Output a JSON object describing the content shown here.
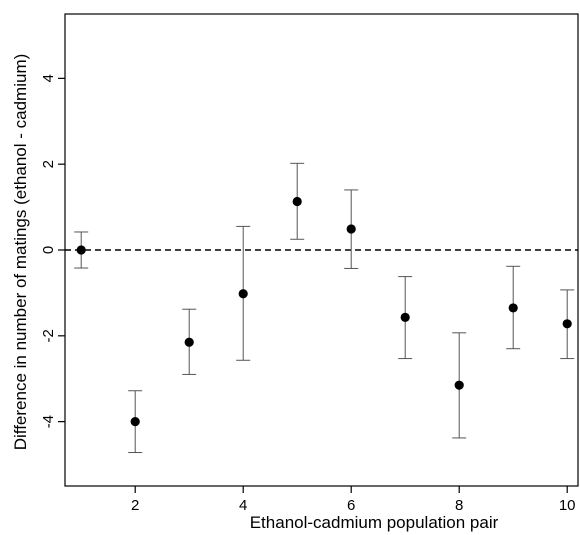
{
  "chart_data": {
    "type": "scatter",
    "title": "",
    "xlabel": "Ethanol-cadmium population pair",
    "ylabel": "Difference in number of matings (ethanol - cadmium)",
    "xlim": [
      0.7,
      10.2
    ],
    "ylim": [
      -5.5,
      5.5
    ],
    "x_ticks": [
      2,
      4,
      6,
      8,
      10
    ],
    "y_ticks": [
      -4,
      -2,
      0,
      2,
      4
    ],
    "x_tick_labels": [
      "2",
      "4",
      "6",
      "8",
      "10"
    ],
    "y_tick_labels": [
      "-4",
      "-2",
      "0",
      "2",
      "4"
    ],
    "reference_line": {
      "y": 0,
      "style": "dashed"
    },
    "grid": false,
    "legend": "none",
    "series": [
      {
        "points": [
          {
            "x": 1,
            "y": 0.0,
            "lower": -0.42,
            "upper": 0.42
          },
          {
            "x": 2,
            "y": -4.0,
            "lower": -4.72,
            "upper": -3.28
          },
          {
            "x": 3,
            "y": -2.15,
            "lower": -2.9,
            "upper": -1.38
          },
          {
            "x": 4,
            "y": -1.02,
            "lower": -2.57,
            "upper": 0.55
          },
          {
            "x": 5,
            "y": 1.13,
            "lower": 0.25,
            "upper": 2.02
          },
          {
            "x": 6,
            "y": 0.49,
            "lower": -0.43,
            "upper": 1.4
          },
          {
            "x": 7,
            "y": -1.57,
            "lower": -2.53,
            "upper": -0.62
          },
          {
            "x": 8,
            "y": -3.15,
            "lower": -4.38,
            "upper": -1.93
          },
          {
            "x": 9,
            "y": -1.35,
            "lower": -2.3,
            "upper": -0.38
          },
          {
            "x": 10,
            "y": -1.72,
            "lower": -2.53,
            "upper": -0.93
          }
        ]
      }
    ]
  }
}
